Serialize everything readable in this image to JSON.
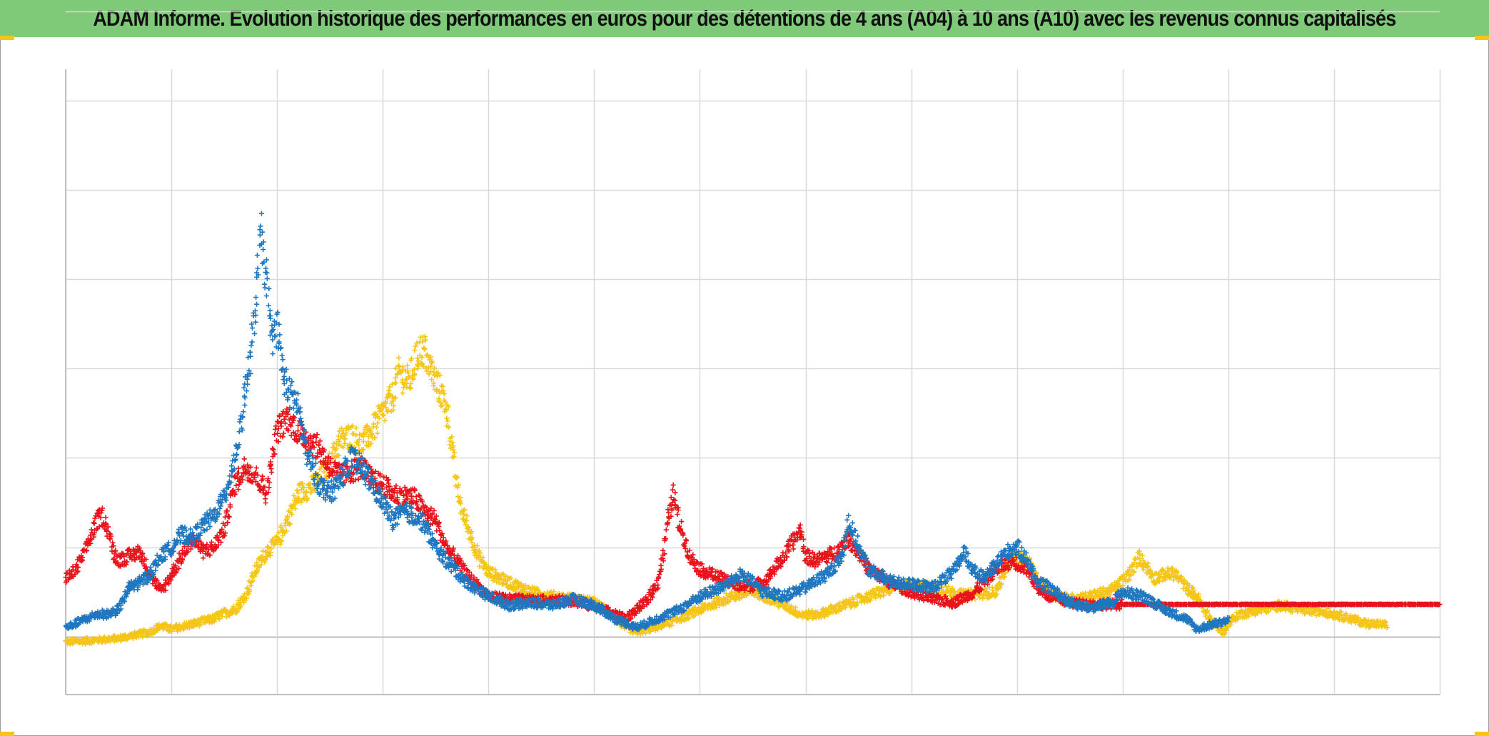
{
  "title": "ADAM Informe. Evolution historique des performances en euros pour des détentions de 4 ans (A04) à 10 ans (A10) avec les revenus connus capitalisés",
  "colors": {
    "header_background": "#7fca78",
    "corner_accent": "#f5c518",
    "grid": "#d9d9d9",
    "axis_line": "#bfbfbf"
  },
  "chart_data": {
    "type": "scatter",
    "marker": "plus",
    "title": "ADAM Informe. Evolution historique des performances en euros pour des détentions de 4 ans (A04) à 10 ans (A10) avec les revenus connus capitalisés",
    "xlabel": "",
    "ylabel": "",
    "tick_labels_visible": false,
    "legend": "none",
    "grid": true,
    "xlim": [
      0,
      13
    ],
    "ylim": [
      -0.65,
      6.35
    ],
    "x_gridlines": [
      0,
      1,
      2,
      3,
      4,
      5,
      6,
      7,
      8,
      9,
      10,
      11,
      12,
      13
    ],
    "y_gridlines": [
      0,
      1,
      2,
      3,
      4,
      5,
      6,
      7
    ],
    "series": [
      {
        "color": "#f5c518",
        "end_x": 12.5,
        "points": [
          [
            0.0,
            -0.06
          ],
          [
            0.3,
            -0.04
          ],
          [
            0.5,
            -0.02
          ],
          [
            0.8,
            0.05
          ],
          [
            0.9,
            0.12
          ],
          [
            1.0,
            0.08
          ],
          [
            1.2,
            0.14
          ],
          [
            1.4,
            0.2
          ],
          [
            1.5,
            0.26
          ],
          [
            1.6,
            0.3
          ],
          [
            1.7,
            0.45
          ],
          [
            1.8,
            0.75
          ],
          [
            1.9,
            0.95
          ],
          [
            2.0,
            1.05
          ],
          [
            2.1,
            1.3
          ],
          [
            2.15,
            1.45
          ],
          [
            2.2,
            1.6
          ],
          [
            2.3,
            1.65
          ],
          [
            2.4,
            1.75
          ],
          [
            2.5,
            1.95
          ],
          [
            2.6,
            2.2
          ],
          [
            2.7,
            2.25
          ],
          [
            2.8,
            2.15
          ],
          [
            2.9,
            2.3
          ],
          [
            3.0,
            2.5
          ],
          [
            3.1,
            2.7
          ],
          [
            3.15,
            2.95
          ],
          [
            3.25,
            2.85
          ],
          [
            3.3,
            3.05
          ],
          [
            3.35,
            3.2
          ],
          [
            3.4,
            3.2
          ],
          [
            3.45,
            3.0
          ],
          [
            3.5,
            2.85
          ],
          [
            3.6,
            2.6
          ],
          [
            3.65,
            2.15
          ],
          [
            3.7,
            1.7
          ],
          [
            3.75,
            1.4
          ],
          [
            3.8,
            1.25
          ],
          [
            3.9,
            0.9
          ],
          [
            4.0,
            0.72
          ],
          [
            4.2,
            0.6
          ],
          [
            4.4,
            0.5
          ],
          [
            4.6,
            0.45
          ],
          [
            4.8,
            0.42
          ],
          [
            5.0,
            0.38
          ],
          [
            5.1,
            0.3
          ],
          [
            5.2,
            0.2
          ],
          [
            5.3,
            0.1
          ],
          [
            5.4,
            0.05
          ],
          [
            5.5,
            0.08
          ],
          [
            5.7,
            0.15
          ],
          [
            5.9,
            0.25
          ],
          [
            6.1,
            0.35
          ],
          [
            6.3,
            0.45
          ],
          [
            6.5,
            0.5
          ],
          [
            6.6,
            0.46
          ],
          [
            6.8,
            0.35
          ],
          [
            6.95,
            0.25
          ],
          [
            7.1,
            0.24
          ],
          [
            7.3,
            0.32
          ],
          [
            7.6,
            0.45
          ],
          [
            7.9,
            0.58
          ],
          [
            8.2,
            0.55
          ],
          [
            8.5,
            0.46
          ],
          [
            8.8,
            0.5
          ],
          [
            8.95,
            0.9
          ],
          [
            9.1,
            0.85
          ],
          [
            9.2,
            0.62
          ],
          [
            9.3,
            0.48
          ],
          [
            9.5,
            0.42
          ],
          [
            9.7,
            0.45
          ],
          [
            9.9,
            0.52
          ],
          [
            10.0,
            0.62
          ],
          [
            10.1,
            0.75
          ],
          [
            10.15,
            0.9
          ],
          [
            10.2,
            0.82
          ],
          [
            10.3,
            0.65
          ],
          [
            10.4,
            0.7
          ],
          [
            10.5,
            0.7
          ],
          [
            10.6,
            0.55
          ],
          [
            10.7,
            0.45
          ],
          [
            10.8,
            0.25
          ],
          [
            10.9,
            0.1
          ],
          [
            10.95,
            0.05
          ],
          [
            11.0,
            0.15
          ],
          [
            11.1,
            0.25
          ],
          [
            11.3,
            0.3
          ],
          [
            11.5,
            0.35
          ],
          [
            11.7,
            0.3
          ],
          [
            11.9,
            0.28
          ],
          [
            12.1,
            0.22
          ],
          [
            12.3,
            0.15
          ],
          [
            12.5,
            0.13
          ]
        ]
      },
      {
        "color": "#e8131b",
        "end_x": 13.0,
        "points": [
          [
            0.0,
            0.65
          ],
          [
            0.1,
            0.75
          ],
          [
            0.2,
            1.0
          ],
          [
            0.3,
            1.3
          ],
          [
            0.35,
            1.35
          ],
          [
            0.4,
            1.2
          ],
          [
            0.45,
            0.95
          ],
          [
            0.5,
            0.85
          ],
          [
            0.6,
            0.9
          ],
          [
            0.7,
            0.95
          ],
          [
            0.8,
            0.7
          ],
          [
            0.9,
            0.5
          ],
          [
            1.0,
            0.7
          ],
          [
            1.1,
            0.9
          ],
          [
            1.2,
            1.1
          ],
          [
            1.3,
            0.95
          ],
          [
            1.4,
            1.0
          ],
          [
            1.5,
            1.2
          ],
          [
            1.6,
            1.7
          ],
          [
            1.7,
            1.9
          ],
          [
            1.8,
            1.8
          ],
          [
            1.9,
            1.6
          ],
          [
            2.0,
            2.3
          ],
          [
            2.1,
            2.45
          ],
          [
            2.2,
            2.3
          ],
          [
            2.3,
            2.2
          ],
          [
            2.4,
            2.1
          ],
          [
            2.5,
            1.9
          ],
          [
            2.6,
            1.8
          ],
          [
            2.7,
            1.85
          ],
          [
            2.8,
            1.9
          ],
          [
            2.9,
            1.75
          ],
          [
            3.0,
            1.7
          ],
          [
            3.1,
            1.6
          ],
          [
            3.3,
            1.55
          ],
          [
            3.4,
            1.4
          ],
          [
            3.5,
            1.3
          ],
          [
            3.6,
            1.0
          ],
          [
            3.7,
            0.85
          ],
          [
            3.8,
            0.68
          ],
          [
            4.0,
            0.45
          ],
          [
            4.2,
            0.42
          ],
          [
            4.5,
            0.4
          ],
          [
            4.8,
            0.4
          ],
          [
            5.1,
            0.3
          ],
          [
            5.3,
            0.2
          ],
          [
            5.5,
            0.4
          ],
          [
            5.6,
            0.6
          ],
          [
            5.65,
            0.9
          ],
          [
            5.7,
            1.3
          ],
          [
            5.75,
            1.6
          ],
          [
            5.8,
            1.3
          ],
          [
            5.9,
            0.9
          ],
          [
            6.0,
            0.75
          ],
          [
            6.2,
            0.65
          ],
          [
            6.4,
            0.55
          ],
          [
            6.6,
            0.6
          ],
          [
            6.8,
            0.9
          ],
          [
            6.95,
            1.2
          ],
          [
            7.0,
            0.9
          ],
          [
            7.1,
            0.85
          ],
          [
            7.3,
            0.95
          ],
          [
            7.4,
            1.1
          ],
          [
            7.5,
            0.95
          ],
          [
            7.6,
            0.75
          ],
          [
            7.8,
            0.6
          ],
          [
            8.0,
            0.5
          ],
          [
            8.2,
            0.42
          ],
          [
            8.4,
            0.38
          ],
          [
            8.6,
            0.5
          ],
          [
            8.8,
            0.75
          ],
          [
            8.95,
            0.85
          ],
          [
            9.1,
            0.75
          ],
          [
            9.2,
            0.55
          ],
          [
            9.3,
            0.45
          ],
          [
            9.5,
            0.38
          ],
          [
            9.7,
            0.36
          ],
          [
            10.0,
            0.36
          ],
          [
            13.0,
            0.36
          ]
        ]
      },
      {
        "color": "#1f77c0",
        "end_x": 11.0,
        "points": [
          [
            0.0,
            0.1
          ],
          [
            0.1,
            0.15
          ],
          [
            0.2,
            0.2
          ],
          [
            0.3,
            0.25
          ],
          [
            0.4,
            0.25
          ],
          [
            0.5,
            0.3
          ],
          [
            0.6,
            0.55
          ],
          [
            0.7,
            0.6
          ],
          [
            0.8,
            0.7
          ],
          [
            0.9,
            0.9
          ],
          [
            1.0,
            1.0
          ],
          [
            1.1,
            1.15
          ],
          [
            1.2,
            1.1
          ],
          [
            1.3,
            1.25
          ],
          [
            1.4,
            1.35
          ],
          [
            1.5,
            1.55
          ],
          [
            1.6,
            2.0
          ],
          [
            1.65,
            2.3
          ],
          [
            1.7,
            2.8
          ],
          [
            1.75,
            3.1
          ],
          [
            1.8,
            3.8
          ],
          [
            1.85,
            4.5
          ],
          [
            1.9,
            4.0
          ],
          [
            1.95,
            3.3
          ],
          [
            2.0,
            3.5
          ],
          [
            2.05,
            3.0
          ],
          [
            2.1,
            2.75
          ],
          [
            2.2,
            2.6
          ],
          [
            2.25,
            2.2
          ],
          [
            2.3,
            2.0
          ],
          [
            2.4,
            1.7
          ],
          [
            2.5,
            1.6
          ],
          [
            2.6,
            1.75
          ],
          [
            2.7,
            2.0
          ],
          [
            2.8,
            1.9
          ],
          [
            2.9,
            1.7
          ],
          [
            3.0,
            1.5
          ],
          [
            3.1,
            1.3
          ],
          [
            3.2,
            1.4
          ],
          [
            3.3,
            1.35
          ],
          [
            3.4,
            1.25
          ],
          [
            3.5,
            1.0
          ],
          [
            3.6,
            0.85
          ],
          [
            3.8,
            0.6
          ],
          [
            4.0,
            0.45
          ],
          [
            4.2,
            0.35
          ],
          [
            4.4,
            0.38
          ],
          [
            4.6,
            0.35
          ],
          [
            4.8,
            0.42
          ],
          [
            5.0,
            0.35
          ],
          [
            5.2,
            0.2
          ],
          [
            5.4,
            0.1
          ],
          [
            5.6,
            0.2
          ],
          [
            5.8,
            0.3
          ],
          [
            6.0,
            0.45
          ],
          [
            6.2,
            0.55
          ],
          [
            6.3,
            0.62
          ],
          [
            6.4,
            0.7
          ],
          [
            6.6,
            0.5
          ],
          [
            6.8,
            0.45
          ],
          [
            7.0,
            0.55
          ],
          [
            7.2,
            0.7
          ],
          [
            7.35,
            0.9
          ],
          [
            7.4,
            1.3
          ],
          [
            7.5,
            1.0
          ],
          [
            7.6,
            0.75
          ],
          [
            7.8,
            0.62
          ],
          [
            8.0,
            0.58
          ],
          [
            8.2,
            0.55
          ],
          [
            8.4,
            0.72
          ],
          [
            8.5,
            0.95
          ],
          [
            8.6,
            0.72
          ],
          [
            8.7,
            0.65
          ],
          [
            8.8,
            0.8
          ],
          [
            8.9,
            0.95
          ],
          [
            9.0,
            1.0
          ],
          [
            9.1,
            0.85
          ],
          [
            9.2,
            0.6
          ],
          [
            9.3,
            0.55
          ],
          [
            9.5,
            0.38
          ],
          [
            9.7,
            0.32
          ],
          [
            9.9,
            0.38
          ],
          [
            10.0,
            0.5
          ],
          [
            10.2,
            0.45
          ],
          [
            10.4,
            0.3
          ],
          [
            10.6,
            0.2
          ],
          [
            10.7,
            0.08
          ],
          [
            10.8,
            0.12
          ],
          [
            10.9,
            0.15
          ],
          [
            11.0,
            0.18
          ]
        ]
      }
    ]
  }
}
